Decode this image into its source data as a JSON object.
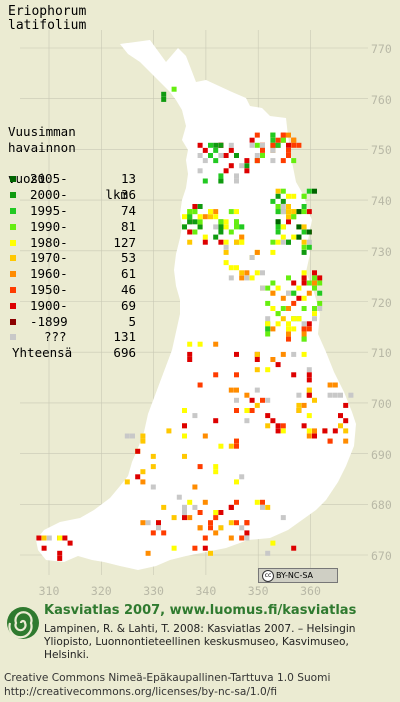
{
  "title": {
    "line1": "Eriophorum",
    "line2": "latifolium"
  },
  "legend": {
    "header": [
      "Vuusimman",
      "havainnon",
      "vuosi"
    ],
    "header_lkm": "lkm",
    "items": [
      {
        "year": "2005-",
        "count": "13",
        "color": "#006400"
      },
      {
        "year": "2000-",
        "count": "36",
        "color": "#109a10"
      },
      {
        "year": "1995-",
        "count": "74",
        "color": "#22c922"
      },
      {
        "year": "1990-",
        "count": "81",
        "color": "#66ee10"
      },
      {
        "year": "1980-",
        "count": "127",
        "color": "#ffff00"
      },
      {
        "year": "1970-",
        "count": "53",
        "color": "#ffc800"
      },
      {
        "year": "1960-",
        "count": "61",
        "color": "#ff8c00"
      },
      {
        "year": "1950-",
        "count": "46",
        "color": "#ff3c00"
      },
      {
        "year": "1900-",
        "count": "69",
        "color": "#dd0000"
      },
      {
        "year": "-1899",
        "count": "5",
        "color": "#8b0000"
      },
      {
        "year": "???",
        "count": "131",
        "color": "#c8c8c8"
      }
    ],
    "total_label": "Yhteensä",
    "total_count": "696"
  },
  "axis": {
    "y_ticks": [
      "770",
      "760",
      "750",
      "740",
      "730",
      "720",
      "710",
      "700",
      "690",
      "680",
      "670"
    ],
    "x_ticks": [
      "310",
      "320",
      "330",
      "340",
      "350",
      "360"
    ]
  },
  "license_badge": "BY-NC-SA",
  "footer": {
    "headline": "Kasviatlas 2007, www.luomus.fi/kasviatlas",
    "citation": "Lampinen, R. & Lahti, T. 2008: Kasviatlas 2007. – Helsingin Yliopisto, Luonnontieteellinen keskusmuseo, Kasvimuseo, Helsinki.",
    "license_line1": "Creative Commons Nimeä-Epäkaupallinen-Tarttuva 1.0 Suomi",
    "license_line2": "http://creativecommons.org/licenses/by-nc-sa/1.0/fi"
  },
  "colors": {
    "background": "#ebebd2",
    "land": "#ffffff",
    "grid": "#c8c8b4",
    "brand": "#2f7a2f"
  }
}
